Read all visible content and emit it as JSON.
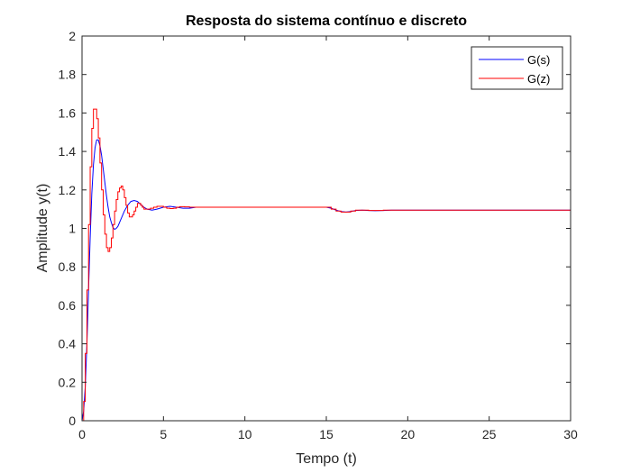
{
  "chart_data": {
    "type": "line",
    "title": "Resposta do sistema contínuo e discreto",
    "xlabel": "Tempo (t)",
    "ylabel": "Amplitude y(t)",
    "xlim": [
      0,
      30
    ],
    "ylim": [
      0,
      2
    ],
    "xticks": [
      0,
      5,
      10,
      15,
      20,
      25,
      30
    ],
    "yticks": [
      0,
      0.2,
      0.4,
      0.6,
      0.8,
      1,
      1.2,
      1.4,
      1.6,
      1.8,
      2
    ],
    "ytick_labels": [
      "0",
      "0.2",
      "0.4",
      "0.6",
      "0.8",
      "1",
      "1.2",
      "1.4",
      "1.6",
      "1.8",
      "2"
    ],
    "grid": false,
    "legend_position": "top-right",
    "series": [
      {
        "name": "G(s)",
        "color": "#0000ff",
        "style": "line",
        "x": [
          0,
          0.1,
          0.2,
          0.3,
          0.4,
          0.5,
          0.6,
          0.7,
          0.8,
          0.9,
          1.0,
          1.1,
          1.2,
          1.3,
          1.4,
          1.5,
          1.6,
          1.7,
          1.8,
          1.9,
          2.0,
          2.1,
          2.2,
          2.3,
          2.4,
          2.6,
          2.8,
          3.0,
          3.2,
          3.4,
          3.6,
          3.8,
          4.0,
          4.3,
          4.6,
          5.0,
          5.4,
          5.8,
          6.2,
          6.6,
          7.0,
          7.5,
          8.0,
          9.0,
          10.0,
          12.0,
          14.0,
          15.0,
          15.3,
          15.6,
          15.9,
          16.2,
          16.5,
          16.8,
          17.2,
          17.6,
          18.0,
          18.5,
          19.0,
          20.0,
          22.0,
          25.0,
          30.0
        ],
        "y": [
          0,
          0.05,
          0.18,
          0.4,
          0.68,
          0.95,
          1.18,
          1.33,
          1.42,
          1.46,
          1.46,
          1.43,
          1.38,
          1.31,
          1.24,
          1.17,
          1.11,
          1.06,
          1.03,
          1.005,
          0.995,
          1.0,
          1.01,
          1.03,
          1.05,
          1.09,
          1.12,
          1.14,
          1.145,
          1.14,
          1.125,
          1.11,
          1.1,
          1.095,
          1.1,
          1.11,
          1.115,
          1.11,
          1.105,
          1.105,
          1.11,
          1.11,
          1.11,
          1.11,
          1.11,
          1.11,
          1.11,
          1.11,
          1.105,
          1.095,
          1.088,
          1.085,
          1.088,
          1.093,
          1.095,
          1.093,
          1.092,
          1.093,
          1.095,
          1.095,
          1.095,
          1.095,
          1.095
        ]
      },
      {
        "name": "G(z)",
        "color": "#ff0000",
        "style": "step",
        "x": [
          0,
          0.1,
          0.2,
          0.3,
          0.4,
          0.5,
          0.6,
          0.7,
          0.8,
          0.9,
          1.0,
          1.1,
          1.2,
          1.3,
          1.4,
          1.5,
          1.6,
          1.7,
          1.8,
          1.9,
          2.0,
          2.1,
          2.2,
          2.3,
          2.4,
          2.5,
          2.6,
          2.7,
          2.8,
          2.9,
          3.0,
          3.1,
          3.2,
          3.3,
          3.4,
          3.5,
          3.6,
          3.7,
          3.8,
          3.9,
          4.0,
          4.2,
          4.4,
          4.6,
          4.8,
          5.0,
          5.2,
          5.4,
          5.6,
          5.8,
          6.0,
          6.3,
          6.6,
          7.0,
          7.5,
          8.0,
          9.0,
          10.0,
          12.0,
          15.0,
          15.3,
          15.6,
          15.9,
          16.2,
          16.5,
          16.8,
          17.2,
          17.6,
          18.0,
          18.5,
          19.0,
          20.0,
          25.0,
          30.0
        ],
        "y": [
          0,
          0.1,
          0.35,
          0.68,
          1.02,
          1.32,
          1.52,
          1.62,
          1.62,
          1.57,
          1.47,
          1.34,
          1.2,
          1.07,
          0.97,
          0.9,
          0.88,
          0.9,
          0.95,
          1.02,
          1.09,
          1.15,
          1.19,
          1.21,
          1.22,
          1.2,
          1.16,
          1.12,
          1.08,
          1.06,
          1.06,
          1.07,
          1.09,
          1.11,
          1.13,
          1.13,
          1.12,
          1.11,
          1.1,
          1.1,
          1.1,
          1.105,
          1.11,
          1.115,
          1.115,
          1.11,
          1.105,
          1.103,
          1.105,
          1.11,
          1.113,
          1.112,
          1.11,
          1.11,
          1.11,
          1.11,
          1.11,
          1.11,
          1.11,
          1.11,
          1.1,
          1.09,
          1.085,
          1.085,
          1.09,
          1.095,
          1.095,
          1.093,
          1.093,
          1.095,
          1.095,
          1.095,
          1.095,
          1.095
        ]
      }
    ]
  }
}
